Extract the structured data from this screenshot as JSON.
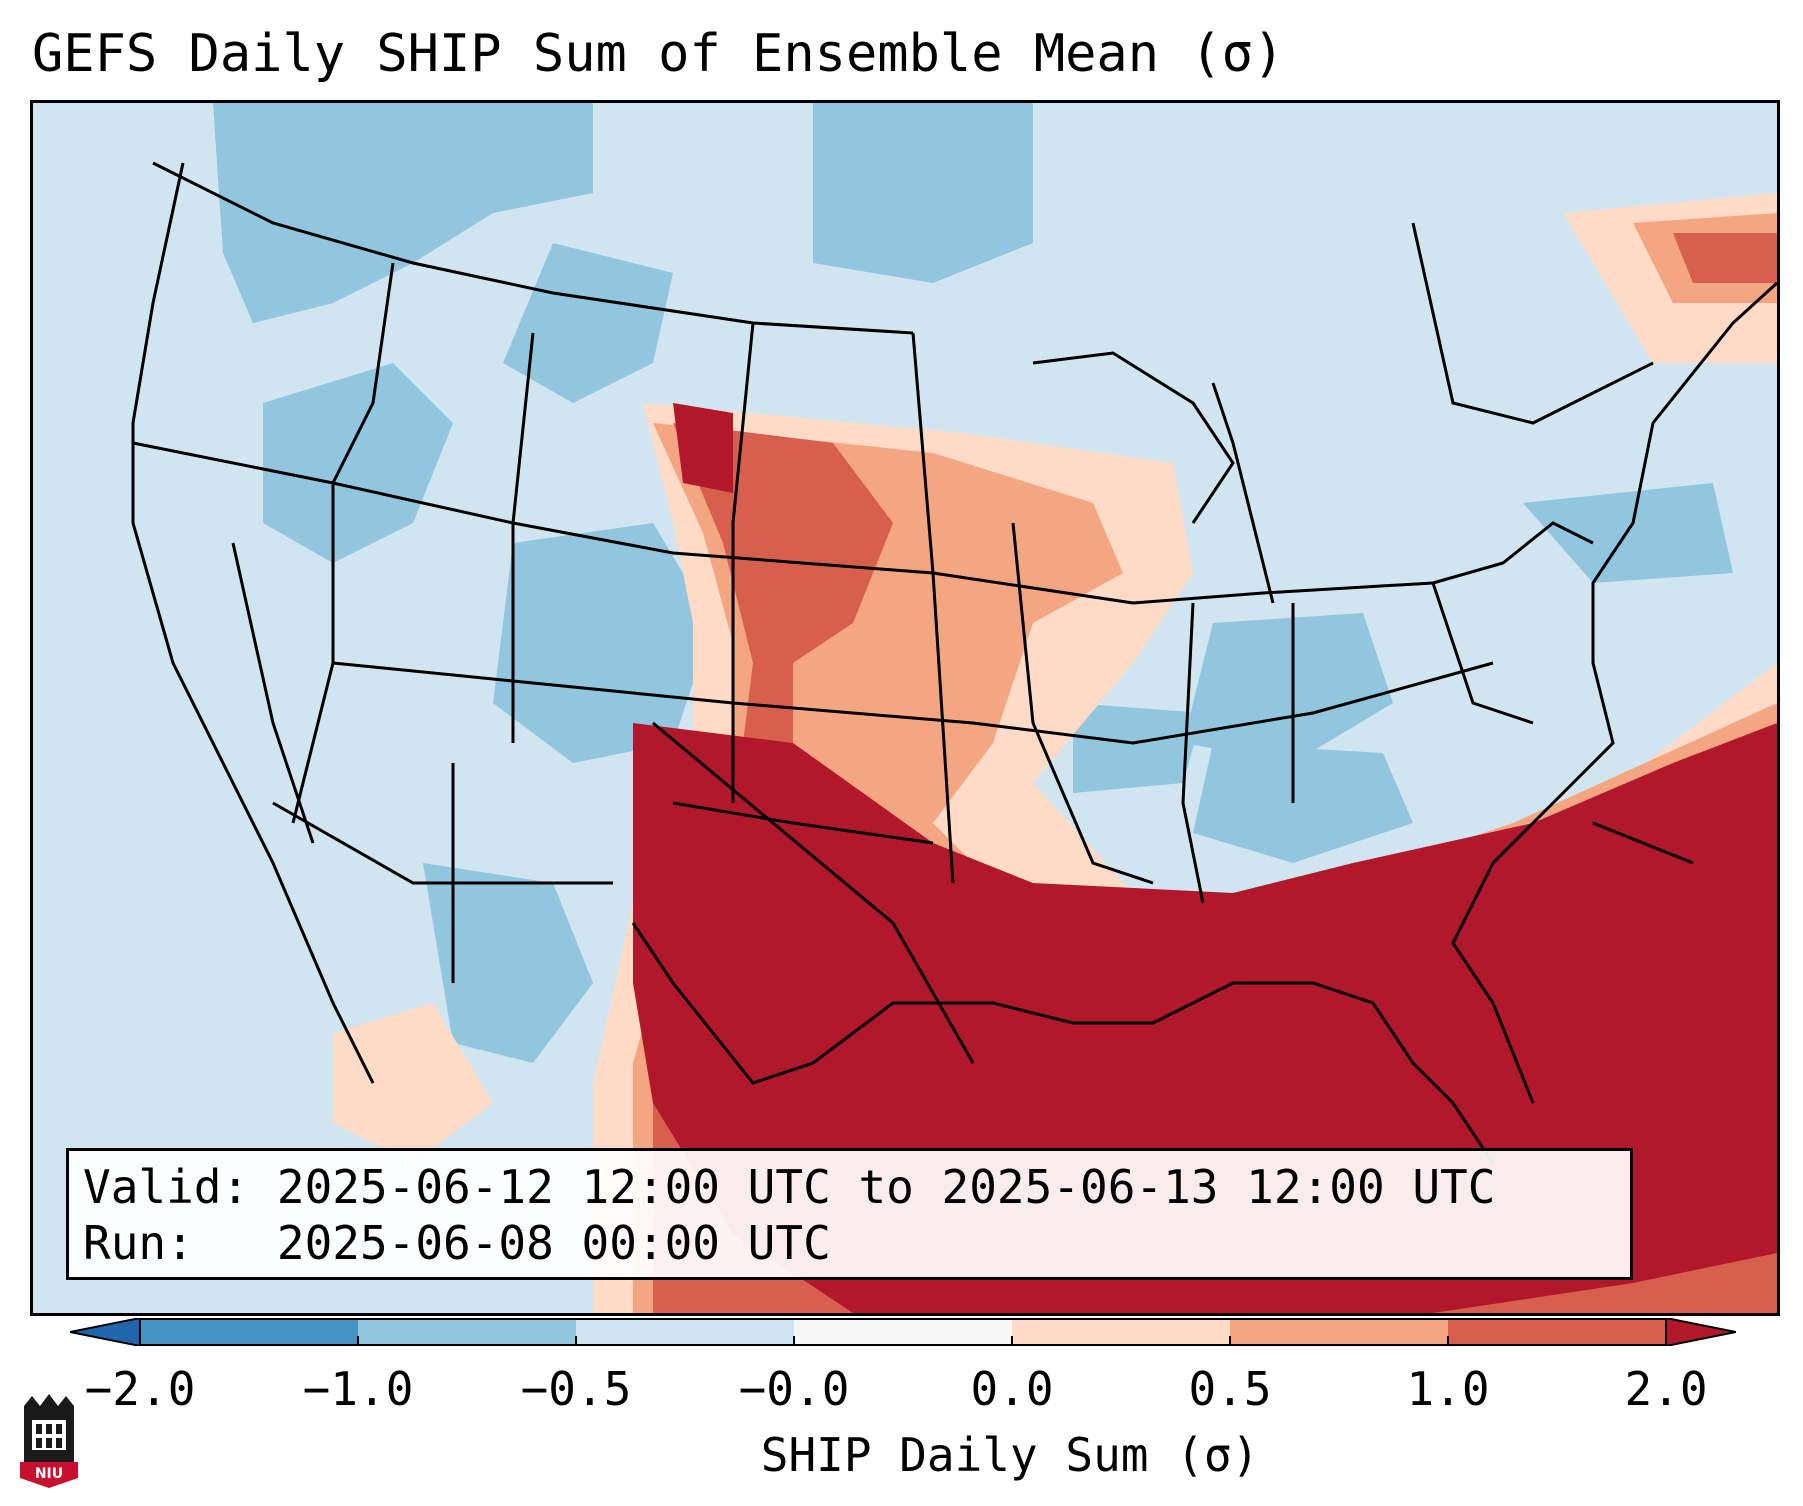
{
  "title": "GEFS Daily SHIP Sum of Ensemble Mean (σ)",
  "info": {
    "valid_label": "Valid:",
    "valid_value": "2025-06-12 12:00 UTC to 2025-06-13 12:00 UTC",
    "run_label": "Run:",
    "run_value": "2025-06-08 00:00 UTC"
  },
  "colorbar": {
    "label": "SHIP Daily Sum (σ)",
    "ticks": [
      "−2.0",
      "−1.0",
      "−0.5",
      "−0.0",
      "0.0",
      "0.5",
      "1.0",
      "2.0"
    ],
    "colors": [
      "#2166ac",
      "#4393c3",
      "#92c5de",
      "#d1e5f0",
      "#f7f7f7",
      "#fddbc7",
      "#f4a582",
      "#d6604d",
      "#b2182b"
    ]
  },
  "map": {
    "background_color": "#d1e5f0",
    "region": "Contiguous United States"
  },
  "logo": {
    "text": "NIU"
  }
}
